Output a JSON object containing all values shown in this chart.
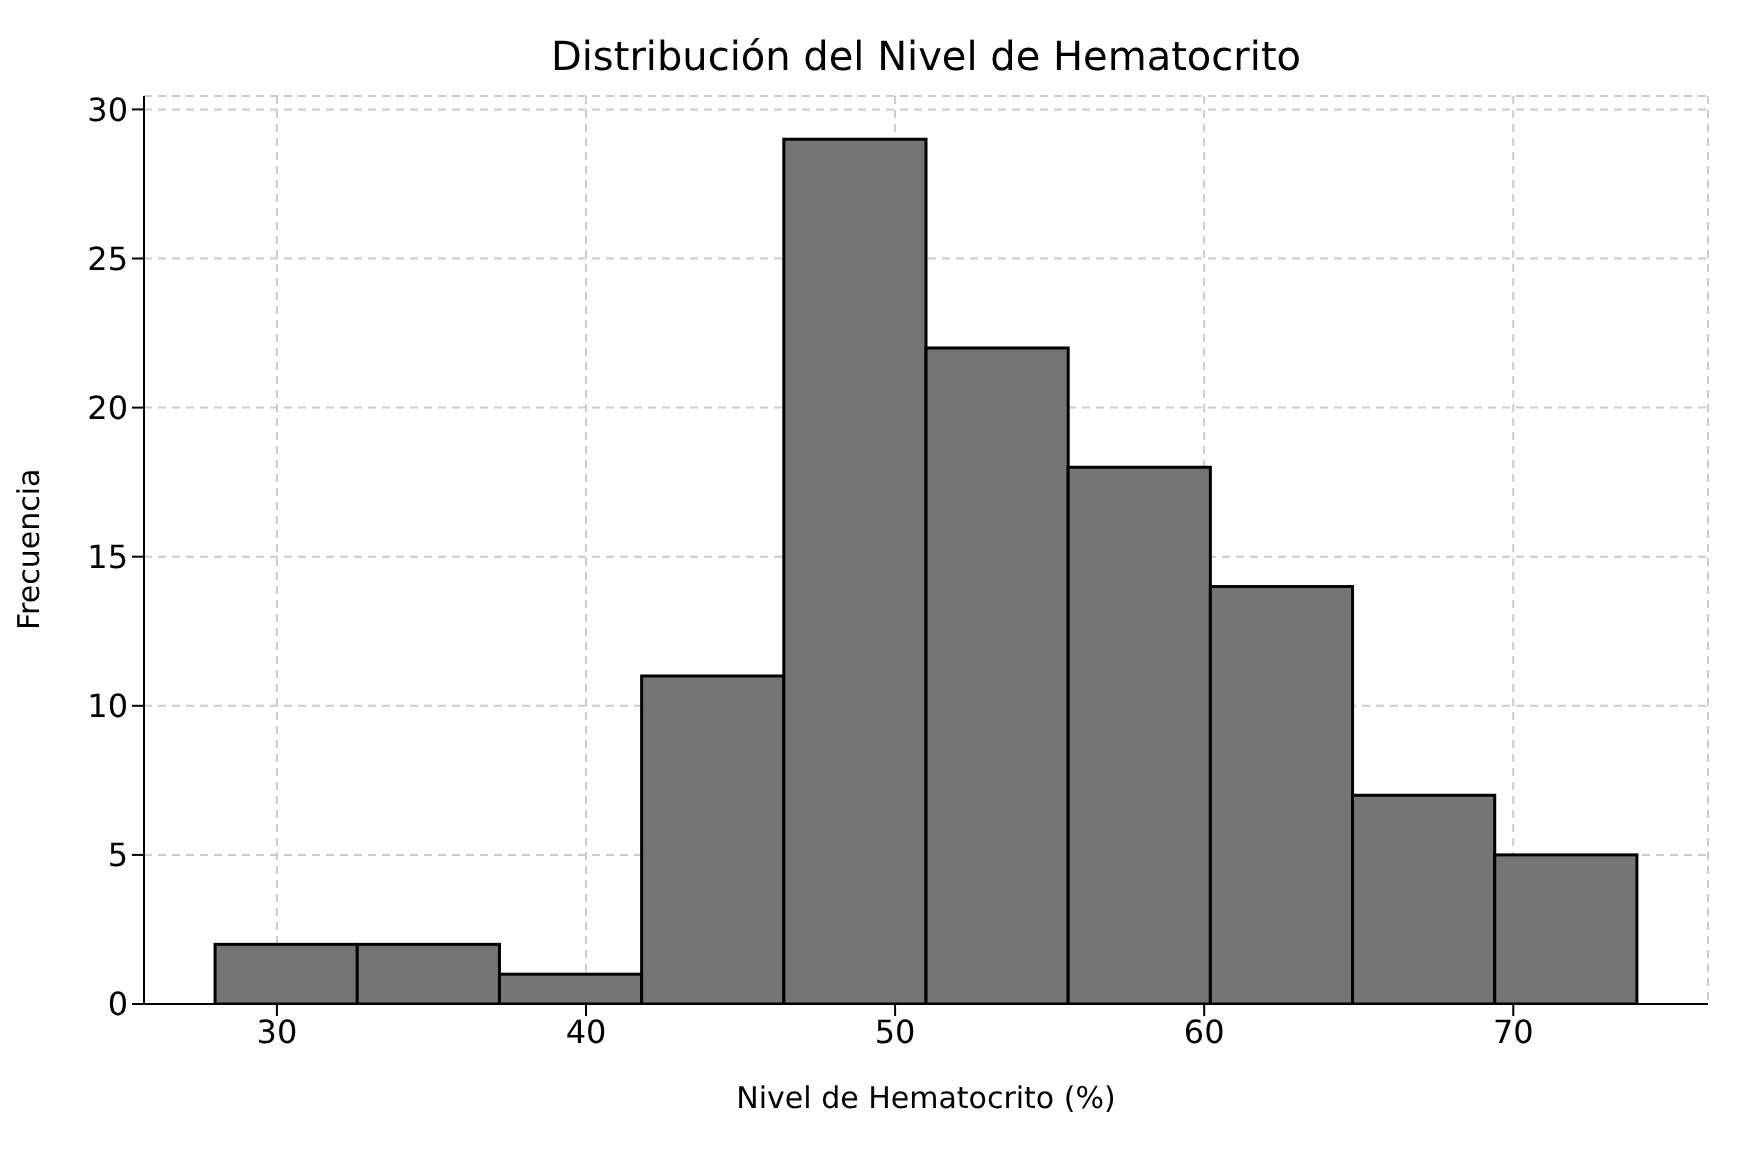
{
  "chart_data": {
    "type": "histogram",
    "title": "Distribución del Nivel de Hematocrito",
    "xlabel": "Nivel de Hematocrito (%)",
    "ylabel": "Frecuencia",
    "bins": [
      28.0,
      32.6,
      37.2,
      41.8,
      46.4,
      51.0,
      55.6,
      60.2,
      64.8,
      69.4,
      74.0
    ],
    "values": [
      2,
      2,
      1,
      11,
      29,
      22,
      18,
      14,
      7,
      5
    ],
    "color": "#757575",
    "xlim": [
      25.7,
      76.3
    ],
    "xticks": [
      30,
      40,
      50,
      60,
      70
    ],
    "ylim": [
      0,
      30.45
    ],
    "yticks": [
      0,
      5,
      10,
      15,
      20,
      25,
      30
    ],
    "grid": true
  }
}
